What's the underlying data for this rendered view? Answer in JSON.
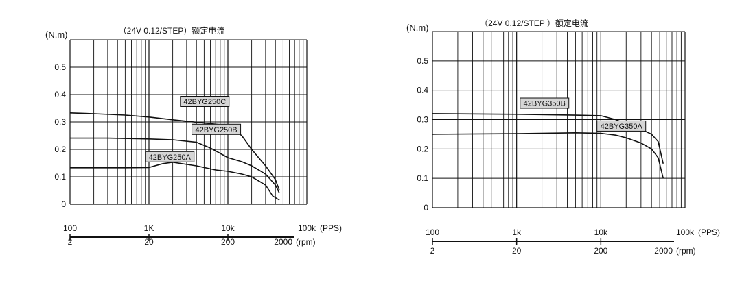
{
  "chart_data": [
    {
      "type": "line",
      "title": "（24V 0.12/STEP）额定电流",
      "ylabel": "(N.m)",
      "yticks": [
        "0",
        "0.1",
        "0.2",
        "0.3",
        "0.4",
        "0.5"
      ],
      "ylim": [
        0,
        0.6
      ],
      "xscale": "log",
      "xlim": [
        100,
        100000
      ],
      "xticks": [
        {
          "x": 100,
          "label": "100"
        },
        {
          "x": 1000,
          "label": "1K"
        },
        {
          "x": 10000,
          "label": "10k"
        },
        {
          "x": 100000,
          "label": "100k"
        }
      ],
      "xunit": "(PPS)",
      "rpm_ticks": [
        {
          "x": 100,
          "label": "2"
        },
        {
          "x": 1000,
          "label": "20"
        },
        {
          "x": 10000,
          "label": "200"
        },
        {
          "x": 100000,
          "label": "2000"
        }
      ],
      "rpm_unit": "(rpm)",
      "grid": true,
      "series": [
        {
          "name": "42BYG250C",
          "points": [
            [
              100,
              0.333
            ],
            [
              200,
              0.33
            ],
            [
              500,
              0.325
            ],
            [
              1000,
              0.318
            ],
            [
              2000,
              0.308
            ],
            [
              5000,
              0.296
            ],
            [
              10000,
              0.287
            ],
            [
              15000,
              0.25
            ],
            [
              20000,
              0.2
            ],
            [
              30000,
              0.14
            ],
            [
              40000,
              0.09
            ],
            [
              45000,
              0.05
            ]
          ]
        },
        {
          "name": "42BYG250B",
          "points": [
            [
              100,
              0.241
            ],
            [
              300,
              0.241
            ],
            [
              1000,
              0.238
            ],
            [
              2000,
              0.235
            ],
            [
              4000,
              0.226
            ],
            [
              6000,
              0.205
            ],
            [
              10000,
              0.17
            ],
            [
              15000,
              0.155
            ],
            [
              20000,
              0.14
            ],
            [
              30000,
              0.11
            ],
            [
              40000,
              0.07
            ],
            [
              45000,
              0.04
            ]
          ]
        },
        {
          "name": "42BYG250A",
          "points": [
            [
              100,
              0.133
            ],
            [
              500,
              0.133
            ],
            [
              1000,
              0.134
            ],
            [
              1500,
              0.148
            ],
            [
              2000,
              0.153
            ],
            [
              4000,
              0.14
            ],
            [
              7000,
              0.125
            ],
            [
              10000,
              0.12
            ],
            [
              15000,
              0.11
            ],
            [
              20000,
              0.1
            ],
            [
              30000,
              0.07
            ],
            [
              37000,
              0.03
            ],
            [
              45000,
              0.015
            ]
          ]
        }
      ],
      "label_x": [
        2500,
        3500,
        900
      ],
      "label_y": [
        0.375,
        0.273,
        0.173
      ]
    },
    {
      "type": "line",
      "title": "（24V 0.12/STEP ）额定电流",
      "ylabel": "(N.m)",
      "yticks": [
        "0",
        "0.1",
        "0.2",
        "0.3",
        "0.4",
        "0.5"
      ],
      "ylim": [
        0,
        0.6
      ],
      "xscale": "log",
      "xlim": [
        100,
        100000
      ],
      "xticks": [
        {
          "x": 100,
          "label": "100"
        },
        {
          "x": 1000,
          "label": "1k"
        },
        {
          "x": 10000,
          "label": "10k"
        },
        {
          "x": 100000,
          "label": "100k"
        }
      ],
      "xunit": "(PPS)",
      "rpm_ticks": [
        {
          "x": 100,
          "label": "2"
        },
        {
          "x": 1000,
          "label": "20"
        },
        {
          "x": 10000,
          "label": "200"
        },
        {
          "x": 100000,
          "label": "2000"
        }
      ],
      "rpm_unit": "(rpm)",
      "grid": true,
      "series": [
        {
          "name": "42BYG350B",
          "points": [
            [
              100,
              0.32
            ],
            [
              1000,
              0.318
            ],
            [
              5000,
              0.315
            ],
            [
              10000,
              0.313
            ],
            [
              15000,
              0.3
            ],
            [
              20000,
              0.285
            ],
            [
              30000,
              0.267
            ],
            [
              40000,
              0.25
            ],
            [
              48000,
              0.225
            ],
            [
              55000,
              0.15
            ]
          ]
        },
        {
          "name": "42BYG350A",
          "points": [
            [
              100,
              0.25
            ],
            [
              1000,
              0.252
            ],
            [
              5000,
              0.255
            ],
            [
              10000,
              0.253
            ],
            [
              15000,
              0.247
            ],
            [
              20000,
              0.238
            ],
            [
              30000,
              0.22
            ],
            [
              40000,
              0.2
            ],
            [
              48000,
              0.17
            ],
            [
              55000,
              0.1
            ]
          ]
        }
      ],
      "label_x": [
        1100,
        9000
      ],
      "label_y": [
        0.356,
        0.278
      ]
    }
  ]
}
